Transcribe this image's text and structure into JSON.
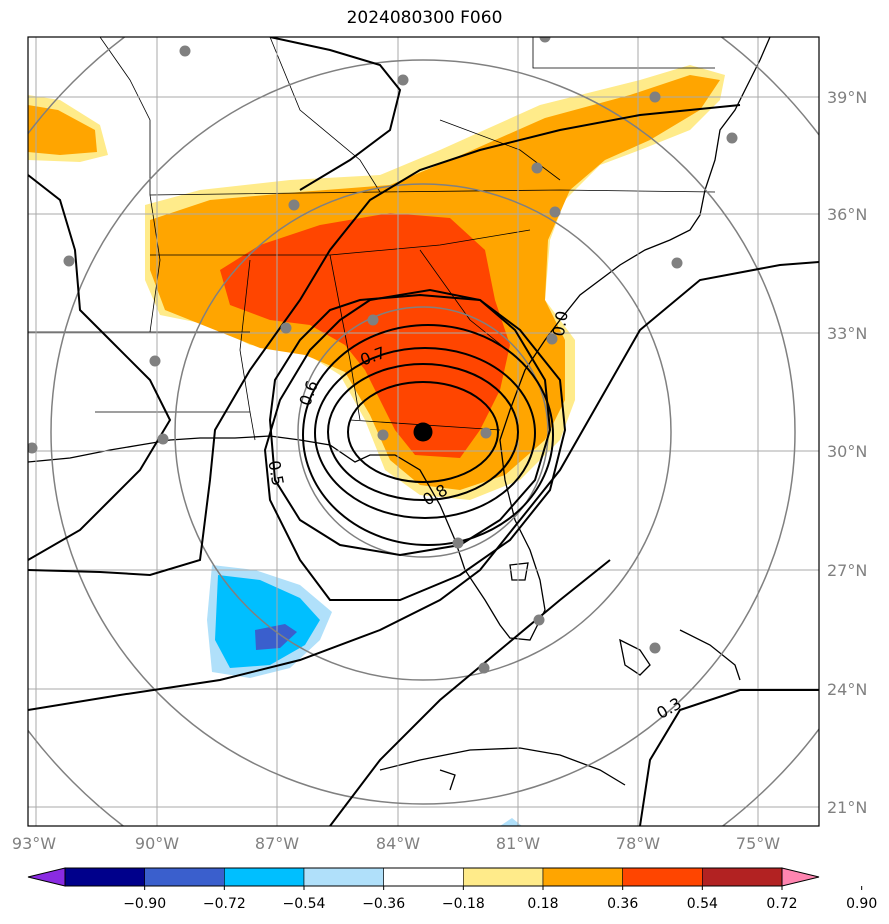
{
  "title": "2024080300 F060",
  "map": {
    "lon_labels": [
      "93°W",
      "90°W",
      "87°W",
      "84°W",
      "81°W",
      "78°W",
      "75°W"
    ],
    "lat_labels": [
      "39°N",
      "36°N",
      "33°N",
      "30°N",
      "27°N",
      "24°N",
      "21°N"
    ],
    "contour_labels": [
      "0.7",
      "0.6",
      "0.5",
      "0.8",
      "0.3",
      "0.0"
    ],
    "center_marker": "storm-center"
  },
  "colorbar": {
    "ticks": [
      "−0.90",
      "−0.72",
      "−0.54",
      "−0.36",
      "−0.18",
      "0.18",
      "0.36",
      "0.54",
      "0.72",
      "0.90"
    ],
    "colors": [
      "#8a2be2",
      "#00008b",
      "#3a5fcd",
      "#00bfff",
      "#b0e0fa",
      "#ffffff",
      "#ffeb8a",
      "#ffa500",
      "#ff4500",
      "#b22222",
      "#ff85b0"
    ]
  }
}
